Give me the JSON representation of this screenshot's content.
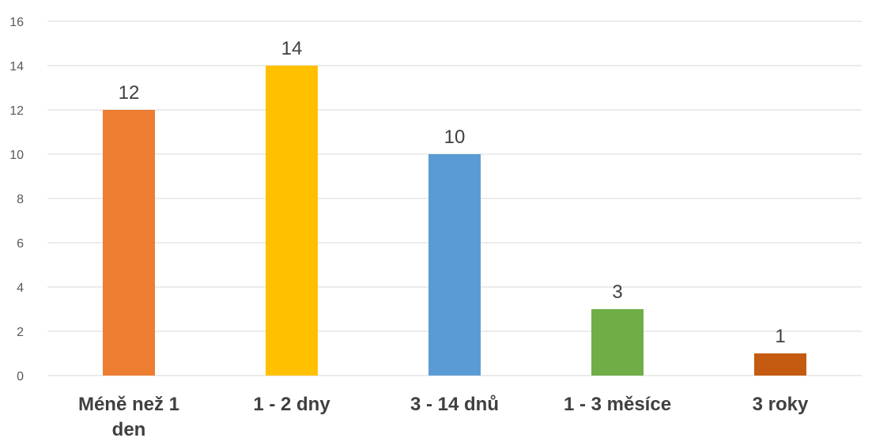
{
  "chart_data": {
    "type": "bar",
    "title": "",
    "xlabel": "",
    "ylabel": "",
    "categories": [
      "Méně než 1 den",
      "1 - 2 dny",
      "3 - 14 dnů",
      "1 - 3 měsíce",
      "3 roky"
    ],
    "category_lines": [
      [
        "Méně než 1",
        "den"
      ],
      [
        "1 - 2 dny"
      ],
      [
        "3 - 14 dnů"
      ],
      [
        "1 - 3 měsíce"
      ],
      [
        "3 roky"
      ]
    ],
    "values": [
      12,
      14,
      10,
      3,
      1
    ],
    "data_labels": [
      "12",
      "14",
      "10",
      "3",
      "1"
    ],
    "colors": [
      "#ed7d31",
      "#ffc000",
      "#5b9bd5",
      "#70ad47",
      "#c55a11"
    ],
    "ylim": [
      0,
      16
    ],
    "yticks": [
      0,
      2,
      4,
      6,
      8,
      10,
      12,
      14,
      16
    ],
    "grid": true,
    "legend": "none"
  }
}
